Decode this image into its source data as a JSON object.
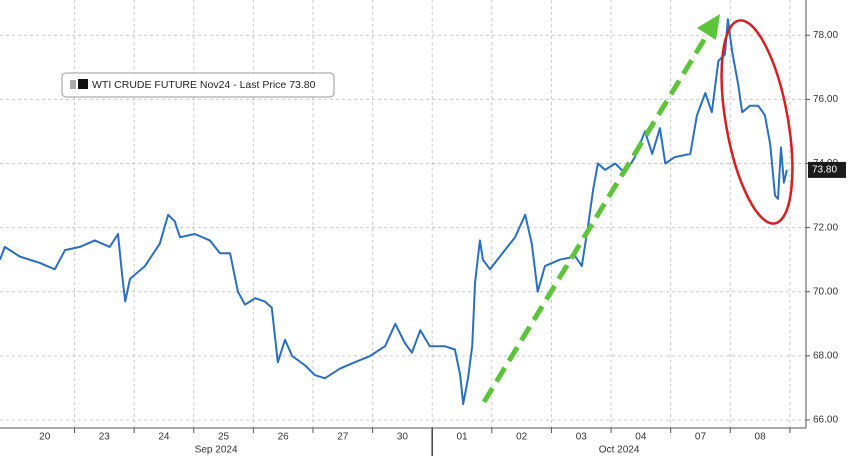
{
  "chart_data": {
    "type": "line",
    "legend": "WTI CRUDE FUTURE Nov24 - Last Price 73.80",
    "last_price": 73.8,
    "last_price_label": "73.80",
    "xlim": [
      -0.25,
      13.27
    ],
    "ylim": [
      65.75,
      79.1
    ],
    "yticks": [
      {
        "value": 66,
        "label": "66.00"
      },
      {
        "value": 68,
        "label": "68.00"
      },
      {
        "value": 70,
        "label": "70.00"
      },
      {
        "value": 72,
        "label": "72.00"
      },
      {
        "value": 74,
        "label": "74.00"
      },
      {
        "value": 76,
        "label": "76.00"
      },
      {
        "value": 78,
        "label": "78.00"
      }
    ],
    "xticks": [
      {
        "value": 0.5,
        "label": "20"
      },
      {
        "value": 1.5,
        "label": "23"
      },
      {
        "value": 2.5,
        "label": "24"
      },
      {
        "value": 3.5,
        "label": "25"
      },
      {
        "value": 4.5,
        "label": "26"
      },
      {
        "value": 5.5,
        "label": "27"
      },
      {
        "value": 6.5,
        "label": "30"
      },
      {
        "value": 7.5,
        "label": "01"
      },
      {
        "value": 8.5,
        "label": "02"
      },
      {
        "value": 9.5,
        "label": "03"
      },
      {
        "value": 10.5,
        "label": "04"
      },
      {
        "value": 11.5,
        "label": "07"
      },
      {
        "value": 12.5,
        "label": "08"
      }
    ],
    "x_grid": [
      1,
      2,
      3,
      4,
      5,
      6,
      7,
      8,
      9,
      10,
      11,
      12,
      13
    ],
    "x_groups": [
      {
        "label": "Sep 2024",
        "start": -0.25,
        "end": 7
      },
      {
        "label": "Oct 2024",
        "start": 7,
        "end": 13.27
      }
    ],
    "grid": true,
    "series": [
      {
        "name": "WTI CRUDE FUTURE Nov24",
        "color": "#2a6fc0",
        "x": [
          -0.25,
          -0.17,
          0.08,
          0.42,
          0.67,
          0.84,
          1.09,
          1.34,
          1.59,
          1.73,
          1.8,
          1.85,
          1.93,
          2.18,
          2.43,
          2.57,
          2.68,
          2.77,
          3.02,
          3.27,
          3.44,
          3.61,
          3.74,
          3.86,
          4.03,
          4.19,
          4.31,
          4.41,
          4.53,
          4.65,
          4.87,
          5.03,
          5.2,
          5.45,
          5.7,
          5.96,
          6.21,
          6.38,
          6.54,
          6.66,
          6.8,
          6.96,
          7.21,
          7.38,
          7.47,
          7.52,
          7.6,
          7.67,
          7.72,
          7.8,
          7.85,
          7.97,
          8.22,
          8.39,
          8.56,
          8.67,
          8.77,
          8.89,
          9.14,
          9.4,
          9.51,
          9.61,
          9.7,
          9.78,
          9.9,
          10.07,
          10.23,
          10.4,
          10.57,
          10.69,
          10.82,
          10.91,
          11.07,
          11.33,
          11.44,
          11.58,
          11.69,
          11.8,
          11.91,
          11.96,
          12.03,
          12.13,
          12.2,
          12.33,
          12.47,
          12.58,
          12.67,
          12.75,
          12.8,
          12.85,
          12.9,
          12.95
        ],
        "values": [
          71.0,
          71.4,
          71.1,
          70.9,
          70.7,
          71.3,
          71.4,
          71.6,
          71.4,
          71.8,
          70.5,
          69.7,
          70.4,
          70.8,
          71.5,
          72.4,
          72.2,
          71.7,
          71.8,
          71.6,
          71.2,
          71.2,
          70.0,
          69.6,
          69.8,
          69.7,
          69.5,
          67.8,
          68.5,
          68.0,
          67.7,
          67.4,
          67.3,
          67.6,
          67.8,
          68.0,
          68.3,
          69.0,
          68.4,
          68.1,
          68.8,
          68.3,
          68.3,
          68.2,
          67.4,
          66.5,
          67.3,
          68.3,
          70.3,
          71.6,
          71.0,
          70.7,
          71.3,
          71.7,
          72.4,
          71.5,
          70.0,
          70.8,
          71.0,
          71.1,
          70.8,
          72.0,
          73.2,
          74.0,
          73.8,
          74.0,
          73.7,
          74.2,
          75.0,
          74.3,
          75.1,
          74.0,
          74.2,
          74.3,
          75.5,
          76.2,
          75.6,
          77.2,
          77.4,
          78.5,
          77.5,
          76.5,
          75.6,
          75.8,
          75.8,
          75.5,
          74.6,
          73.0,
          72.9,
          74.5,
          73.4,
          73.8
        ]
      }
    ]
  }
}
